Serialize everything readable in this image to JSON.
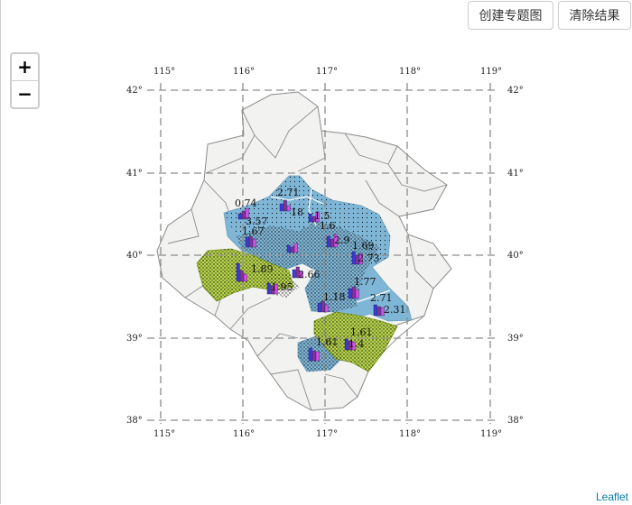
{
  "toolbar": {
    "create_label": "创建专题图",
    "clear_label": "清除结果"
  },
  "zoom": {
    "in_label": "+",
    "out_label": "−"
  },
  "attribution": "Leaflet",
  "graticule": {
    "top_lon": [
      "115°",
      "116°",
      "117°",
      "118°",
      "119°"
    ],
    "bottom_lon": [
      "115°",
      "116°",
      "117°",
      "118°",
      "119°"
    ],
    "left_lat": [
      "42°",
      "41°",
      "40°",
      "39°",
      "38°"
    ],
    "right_lat": [
      "42°",
      "41°",
      "40°",
      "39°",
      "38°"
    ]
  },
  "colors": {
    "water_blue": "#7fb6d6",
    "green_fill": "#b6d24a",
    "land": "#f2f2f0",
    "bar_blue": "#3a3ad8",
    "bar_purple": "#8a2f9a",
    "bar_magenta": "#d84fe6"
  },
  "map_labels": [
    "0.74",
    "2.71",
    "18",
    "3.57",
    "1.67",
    "1.5",
    "1.6",
    "2.9",
    "1.69",
    "2.73",
    "1.89",
    "1.95",
    "2.66",
    "1.18",
    "1.77",
    "2.71",
    "2.31",
    "1.61",
    "1.61",
    "1.4"
  ]
}
